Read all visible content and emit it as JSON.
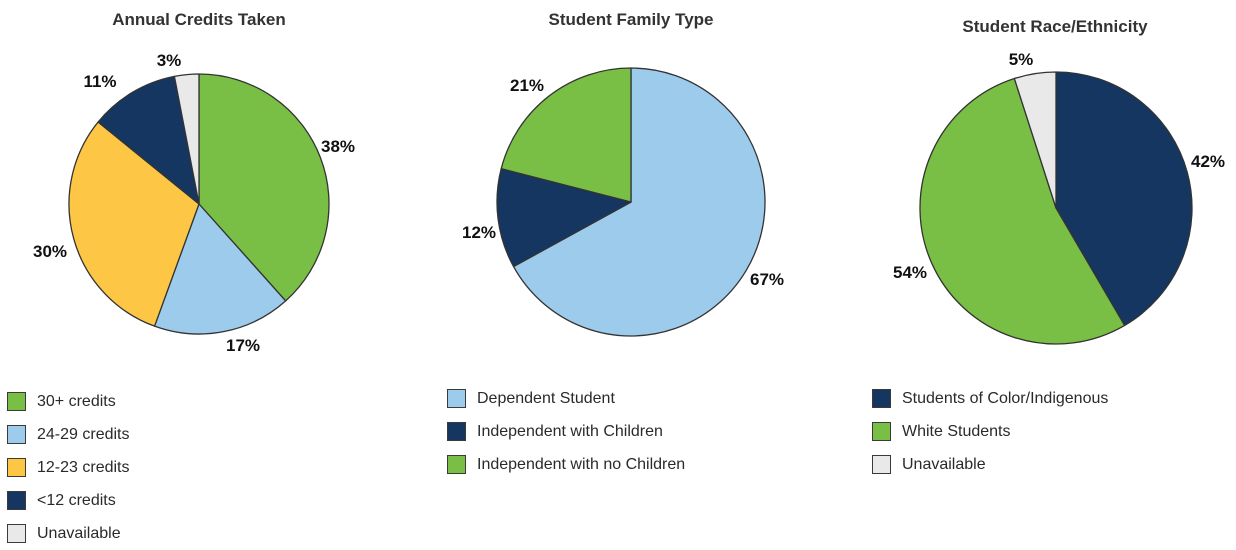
{
  "chart_data": [
    {
      "type": "pie",
      "title": "Annual Credits Taken",
      "slices": [
        {
          "label": "30+ credits",
          "value": 38,
          "display": "38%",
          "color": "#79bf45"
        },
        {
          "label": "24-29 credits",
          "value": 17,
          "display": "17%",
          "color": "#9dcbeb"
        },
        {
          "label": "12-23 credits",
          "value": 30,
          "display": "30%",
          "color": "#fdc745"
        },
        {
          "label": "<12 credits",
          "value": 11,
          "display": "11%",
          "color": "#143660"
        },
        {
          "label": "Unavailable",
          "value": 3,
          "display": "3%",
          "color": "#e9e9e9"
        }
      ],
      "legend": [
        "30+ credits",
        "24-29 credits",
        "12-23 credits",
        "<12 credits",
        "Unavailable"
      ],
      "legend_placement": "bottom-left"
    },
    {
      "type": "pie",
      "title": "Student Family Type",
      "slices": [
        {
          "label": "Dependent Student",
          "value": 67,
          "display": "67%",
          "color": "#9dcbeb"
        },
        {
          "label": "Independent with Children",
          "value": 12,
          "display": "12%",
          "color": "#143660"
        },
        {
          "label": "Independent with no Children",
          "value": 21,
          "display": "21%",
          "color": "#79bf45"
        }
      ],
      "legend": [
        "Dependent Student",
        "Independent with Children",
        "Independent with no Children"
      ],
      "legend_placement": "bottom"
    },
    {
      "type": "pie",
      "title": "Student Race/Ethnicity",
      "slices": [
        {
          "label": "Students of Color/Indigenous",
          "value": 42,
          "display": "42%",
          "color": "#143660"
        },
        {
          "label": "White Students",
          "value": 54,
          "display": "54%",
          "color": "#79bf45"
        },
        {
          "label": "Unavailable",
          "value": 5,
          "display": "5%",
          "color": "#e9e9e9"
        }
      ],
      "legend": [
        "Students of Color/Indigenous",
        "White Students",
        "Unavailable"
      ],
      "legend_placement": "bottom"
    }
  ]
}
